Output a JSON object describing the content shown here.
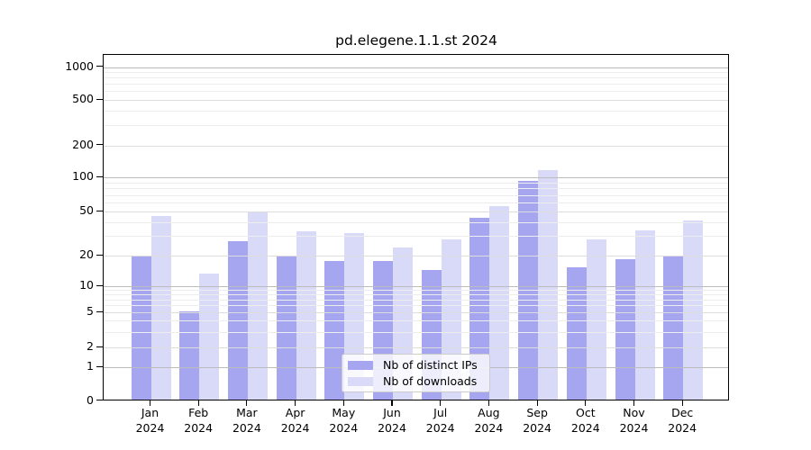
{
  "title": "pd.elegene.1.1.st 2024",
  "legend": {
    "items": [
      {
        "label": "Nb of distinct IPs",
        "color": "#a5a5f0"
      },
      {
        "label": "Nb of downloads",
        "color": "#d9d9f8"
      }
    ]
  },
  "chart_data": {
    "type": "bar",
    "title": "pd.elegene.1.1.st 2024",
    "categories": [
      "Jan 2024",
      "Feb 2024",
      "Mar 2024",
      "Apr 2024",
      "May 2024",
      "Jun 2024",
      "Jul 2024",
      "Aug 2024",
      "Sep 2024",
      "Oct 2024",
      "Nov 2024",
      "Dec 2024"
    ],
    "x_tick_line1": [
      "Jan",
      "Feb",
      "Mar",
      "Apr",
      "May",
      "Jun",
      "Jul",
      "Aug",
      "Sep",
      "Oct",
      "Nov",
      "Dec"
    ],
    "x_tick_line2": "2024",
    "series": [
      {
        "name": "Nb of distinct IPs",
        "color": "#a5a5f0",
        "values": [
          19,
          5,
          26,
          19,
          17,
          17,
          14,
          43,
          90,
          15,
          18,
          19
        ]
      },
      {
        "name": "Nb of downloads",
        "color": "#d9d9f8",
        "values": [
          44,
          13,
          49,
          32,
          31,
          23,
          27,
          54,
          113,
          27,
          33,
          40
        ]
      }
    ],
    "ylabel": "",
    "xlabel": "",
    "yscale": "symlog",
    "y_ticks": [
      0,
      1,
      2,
      5,
      10,
      20,
      50,
      100,
      200,
      500,
      1000
    ],
    "y_tick_labels": [
      "0",
      "1",
      "2",
      "5",
      "10",
      "20",
      "50",
      "100",
      "200",
      "500",
      "1000"
    ],
    "ylim": [
      0,
      1200
    ],
    "grid": true,
    "grid_over_bars": true,
    "legend_position": "lower center inside axes",
    "colors": {
      "major_gridline": "#bcbcbc",
      "labeled_gridline": "#dddddd",
      "minor_gridline": "#ededed",
      "axis": "#000000",
      "background": "#ffffff"
    }
  }
}
